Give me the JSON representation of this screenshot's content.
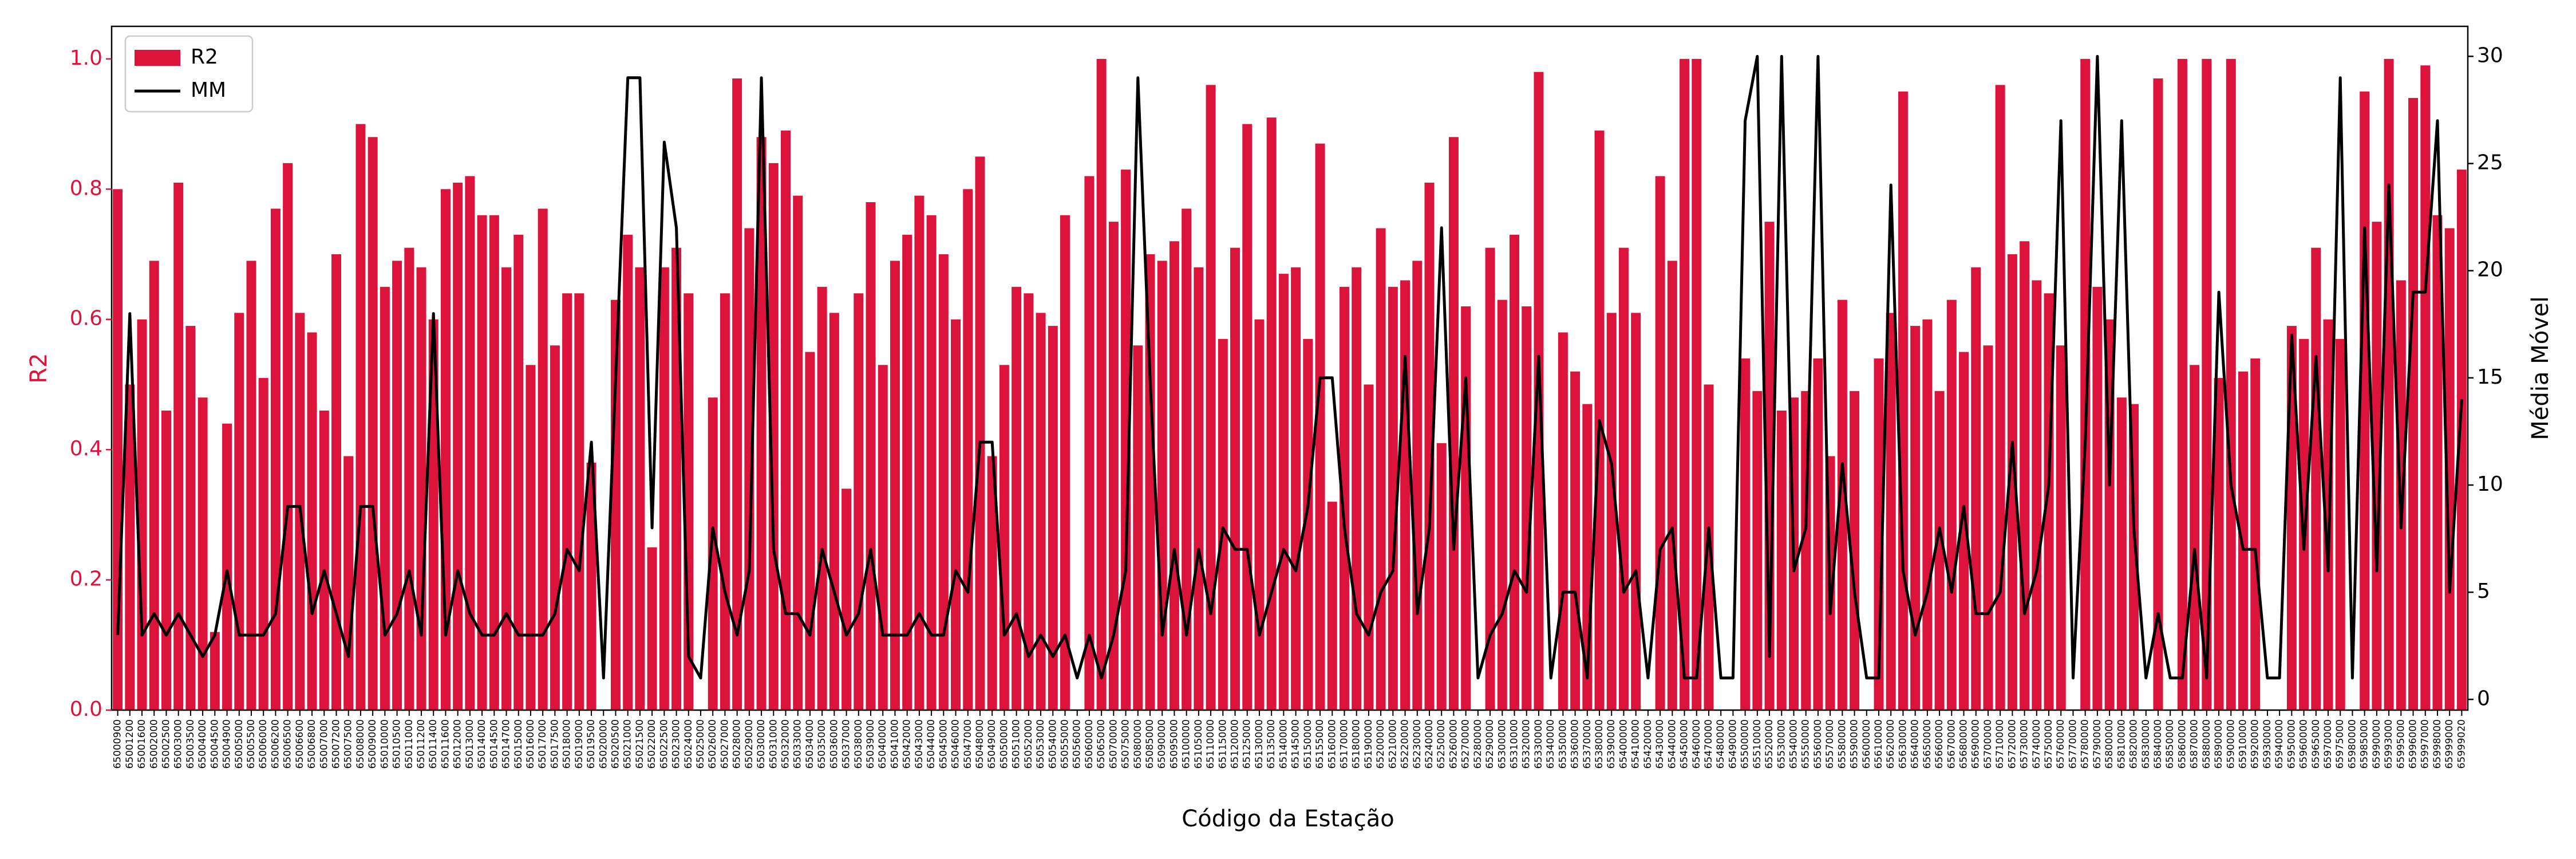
{
  "chart_data": {
    "type": "bar_line",
    "x_label": "Código da Estação",
    "y_label": "R2",
    "y2_label": "Média Móvel",
    "legend": "upper left",
    "categories": [
      "65000900",
      "65001200",
      "65001600",
      "65002000",
      "65002500",
      "65003000",
      "65003500",
      "65004000",
      "65004500",
      "65004900",
      "65005000",
      "65005500",
      "65006000",
      "65006200",
      "65006500",
      "65006600",
      "65006800",
      "65007000",
      "65007200",
      "65007500",
      "65008000",
      "65009000",
      "65010000",
      "65010500",
      "65011000",
      "65011200",
      "65011400",
      "65011600",
      "65012000",
      "65013000",
      "65014000",
      "65014500",
      "65014700",
      "65015000",
      "65016000",
      "65017000",
      "65017500",
      "65018000",
      "65019000",
      "65019500",
      "65020000",
      "65020500",
      "65021000",
      "65021500",
      "65022000",
      "65022500",
      "65023000",
      "65024000",
      "65025000",
      "65026000",
      "65027000",
      "65028000",
      "65029000",
      "65030000",
      "65031000",
      "65032000",
      "65033000",
      "65034000",
      "65035000",
      "65036000",
      "65037000",
      "65038000",
      "65039000",
      "65040000",
      "65041000",
      "65042000",
      "65043000",
      "65044000",
      "65045000",
      "65046000",
      "65047000",
      "65048000",
      "65049000",
      "65050000",
      "65051000",
      "65052000",
      "65053000",
      "65054000",
      "65055000",
      "65056000",
      "65060000",
      "65065000",
      "65070000",
      "65075000",
      "65080000",
      "65085000",
      "65090000",
      "65095000",
      "65100000",
      "65105000",
      "65110000",
      "65115000",
      "65120000",
      "65125000",
      "65130000",
      "65135000",
      "65140000",
      "65145000",
      "65150000",
      "65155000",
      "65160000",
      "65170000",
      "65180000",
      "65190000",
      "65200000",
      "65210000",
      "65220000",
      "65230000",
      "65240000",
      "65250000",
      "65260000",
      "65270000",
      "65280000",
      "65290000",
      "65300000",
      "65310000",
      "65320000",
      "65330000",
      "65340000",
      "65350000",
      "65360000",
      "65370000",
      "65380000",
      "65390000",
      "65400000",
      "65410000",
      "65420000",
      "65430000",
      "65440000",
      "65450000",
      "65460000",
      "65470000",
      "65480000",
      "65490000",
      "65500000",
      "65510000",
      "65520000",
      "65530000",
      "65540000",
      "65550000",
      "65560000",
      "65570000",
      "65580000",
      "65590000",
      "65600000",
      "65610000",
      "65620000",
      "65630000",
      "65640000",
      "65650000",
      "65660000",
      "65670000",
      "65680000",
      "65690000",
      "65700000",
      "65710000",
      "65720000",
      "65730000",
      "65740000",
      "65750000",
      "65760000",
      "65770000",
      "65780000",
      "65790000",
      "65800000",
      "65810000",
      "65820000",
      "65830000",
      "65840000",
      "65850000",
      "65860000",
      "65870000",
      "65880000",
      "65890000",
      "65900000",
      "65910000",
      "65920000",
      "65930000",
      "65940000",
      "65950000",
      "65960000",
      "65965000",
      "65970000",
      "65975000",
      "65980000",
      "65985000",
      "65990000",
      "65993000",
      "65995000",
      "65996000",
      "65997000",
      "65998000",
      "65999000",
      "65999020"
    ],
    "series": [
      {
        "name": "R2",
        "color": "#dc143c",
        "kind": "bar",
        "axis": "y",
        "values": [
          0.8,
          0.5,
          0.6,
          0.69,
          0.46,
          0.81,
          0.59,
          0.48,
          0.12,
          0.44,
          0.61,
          0.69,
          0.51,
          0.77,
          0.84,
          0.61,
          0.58,
          0.46,
          0.7,
          0.39,
          0.9,
          0.88,
          0.65,
          0.69,
          0.71,
          0.68,
          0.6,
          0.8,
          0.81,
          0.82,
          0.76,
          0.76,
          0.68,
          0.73,
          0.53,
          0.77,
          0.56,
          0.64,
          0.64,
          0.38,
          0,
          0.63,
          0.73,
          0.68,
          0.25,
          0.68,
          0.71,
          0.64,
          0,
          0.48,
          0.64,
          0.97,
          0.74,
          0.88,
          0.84,
          0.89,
          0.79,
          0.55,
          0.65,
          0.61,
          0.34,
          0.64,
          0.78,
          0.53,
          0.69,
          0.73,
          0.79,
          0.76,
          0.7,
          0.6,
          0.8,
          0.85,
          0.39,
          0.53,
          0.65,
          0.64,
          0.61,
          0.59,
          0.76,
          0,
          0.82,
          1.0,
          0.75,
          0.83,
          0.56,
          0.7,
          0.69,
          0.72,
          0.77,
          0.68,
          0.96,
          0.57,
          0.71,
          0.9,
          0.6,
          0.91,
          0.67,
          0.68,
          0.57,
          0.87,
          0.32,
          0.65,
          0.68,
          0.5,
          0.74,
          0.65,
          0.66,
          0.69,
          0.81,
          0.41,
          0.88,
          0.62,
          0,
          0.71,
          0.63,
          0.73,
          0.62,
          0.98,
          0,
          0.58,
          0.52,
          0.47,
          0.89,
          0.61,
          0.71,
          0.61,
          0,
          0.82,
          0.69,
          1.0,
          1.0,
          0.5,
          0,
          0,
          0.54,
          0.49,
          0.75,
          0.46,
          0.48,
          0.49,
          0.54,
          0.39,
          0.63,
          0.49,
          0,
          0.54,
          0.61,
          0.95,
          0.59,
          0.6,
          0.49,
          0.63,
          0.55,
          0.68,
          0.56,
          0.96,
          0.7,
          0.72,
          0.66,
          0.64,
          0.56,
          0,
          1.0,
          0.65,
          0.6,
          0.48,
          0.47,
          0,
          0.97,
          0,
          1.0,
          0.53,
          1.0,
          0.51,
          1.0,
          0.52,
          0.54,
          0,
          0,
          0.59,
          0.57,
          0.71,
          0.6,
          0.57,
          0,
          0.95,
          0.75,
          1.0,
          0.66,
          0.94,
          0.99,
          0.76,
          0.74,
          0.83
        ]
      },
      {
        "name": "MM",
        "color": "#000000",
        "kind": "line",
        "axis": "y2",
        "values": [
          3,
          18,
          3,
          4,
          3,
          4,
          3,
          2,
          3,
          6,
          3,
          3,
          3,
          4,
          9,
          9,
          4,
          6,
          4,
          2,
          9,
          9,
          3,
          4,
          6,
          3,
          18,
          3,
          6,
          4,
          3,
          3,
          4,
          3,
          3,
          3,
          4,
          7,
          6,
          12,
          1,
          15,
          29,
          29,
          8,
          26,
          22,
          2,
          1,
          8,
          5,
          3,
          6,
          29,
          7,
          4,
          4,
          3,
          7,
          5,
          3,
          4,
          7,
          3,
          3,
          3,
          4,
          3,
          3,
          6,
          5,
          12,
          12,
          3,
          4,
          2,
          3,
          2,
          3,
          1,
          3,
          1,
          3,
          6,
          29,
          15,
          3,
          7,
          3,
          7,
          4,
          8,
          7,
          7,
          3,
          5,
          7,
          6,
          9,
          15,
          15,
          8,
          4,
          3,
          5,
          6,
          16,
          4,
          8,
          22,
          7,
          15,
          1,
          3,
          4,
          6,
          5,
          16,
          1,
          5,
          5,
          1,
          13,
          11,
          5,
          6,
          1,
          7,
          8,
          1,
          1,
          8,
          1,
          1,
          27,
          30,
          2,
          30,
          6,
          8,
          30,
          4,
          11,
          5,
          1,
          1,
          24,
          6,
          3,
          5,
          8,
          5,
          9,
          4,
          4,
          5,
          12,
          4,
          6,
          10,
          27,
          1,
          12,
          30,
          10,
          27,
          8,
          1,
          4,
          1,
          1,
          7,
          1,
          19,
          10,
          7,
          7,
          1,
          1,
          17,
          7,
          16,
          6,
          29,
          1,
          22,
          6,
          24,
          8,
          19,
          19,
          27,
          5,
          14
        ]
      }
    ],
    "ylim": [
      0,
      1.05
    ],
    "yticks": [
      {
        "value": 0,
        "label": "0.0"
      },
      0.2,
      0.4,
      0.6,
      0.8,
      {
        "value": 1,
        "label": "1.0"
      }
    ],
    "y2lim": [
      -0.5,
      31.4
    ],
    "y2ticks": [
      0,
      5,
      10,
      15,
      20,
      25,
      30
    ]
  }
}
